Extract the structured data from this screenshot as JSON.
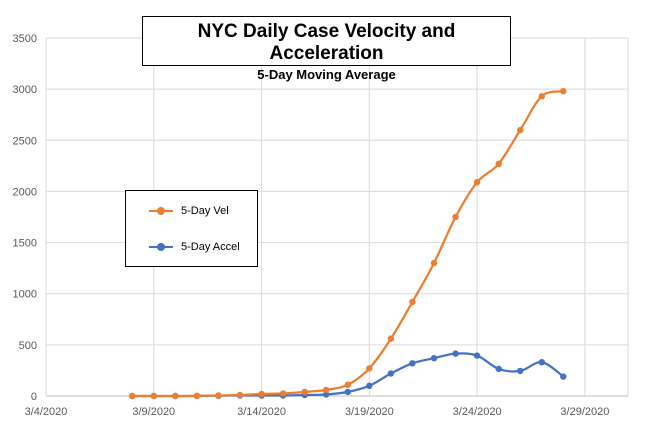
{
  "chart_data": {
    "type": "line",
    "title": "NYC Daily Case Velocity and Acceleration",
    "subtitle": "5-Day Moving Average",
    "xlabel": "",
    "ylabel": "",
    "ylim": [
      0,
      3500
    ],
    "yticks": [
      0,
      500,
      1000,
      1500,
      2000,
      2500,
      3000,
      3500
    ],
    "xlim": [
      "3/4/2020",
      "3/31/2020"
    ],
    "xtick_labels": [
      "3/4/2020",
      "3/9/2020",
      "3/14/2020",
      "3/19/2020",
      "3/24/2020",
      "3/29/2020"
    ],
    "x_start_day": 8,
    "grid": true,
    "legend": "left-center",
    "series": [
      {
        "name": "5-Day Vel",
        "color": "#ed7d31",
        "values": [
          0,
          0,
          0,
          2,
          5,
          10,
          20,
          25,
          40,
          60,
          110,
          270,
          560,
          920,
          1300,
          1750,
          2090,
          2270,
          2600,
          2930,
          2980
        ]
      },
      {
        "name": "5-Day Accel",
        "color": "#4472c4",
        "values": [
          0,
          0,
          0,
          1,
          3,
          5,
          5,
          5,
          10,
          15,
          40,
          100,
          220,
          320,
          370,
          415,
          395,
          265,
          245,
          330,
          190
        ]
      }
    ]
  }
}
